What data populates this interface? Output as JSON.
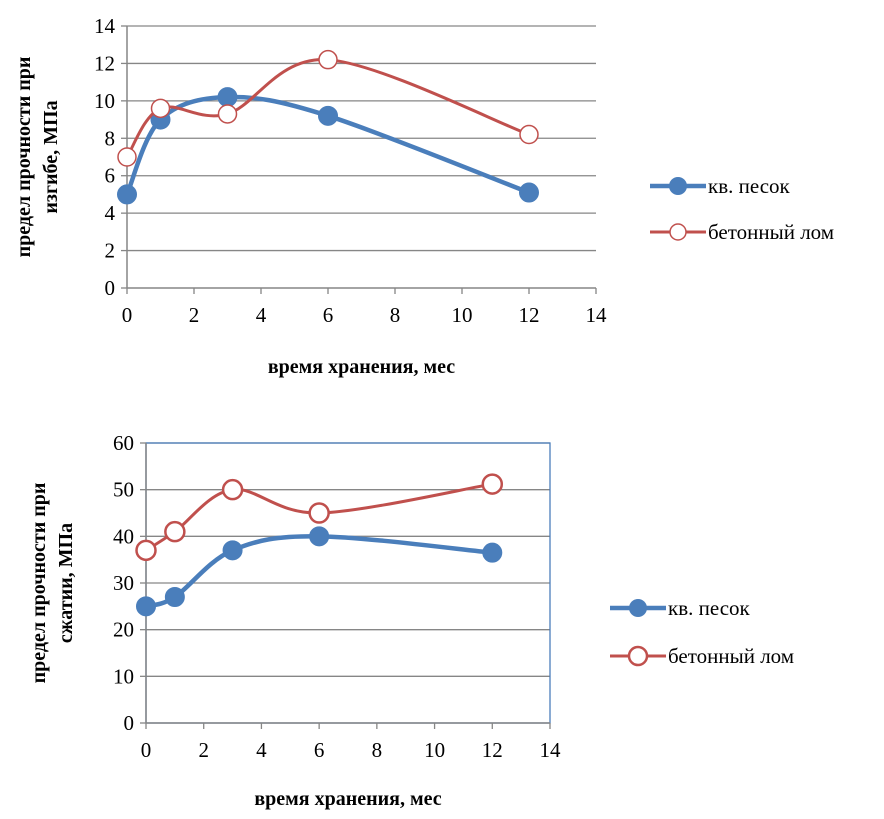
{
  "chart_data": [
    {
      "type": "line",
      "title": "",
      "xlabel": "время хранения, мес",
      "ylabel": "предел прочности при изгибе, МПа",
      "xlim": [
        0,
        14
      ],
      "ylim": [
        0,
        14
      ],
      "x_ticks": [
        0,
        2,
        4,
        6,
        8,
        10,
        12,
        14
      ],
      "y_ticks": [
        0,
        2,
        4,
        6,
        8,
        10,
        12,
        14
      ],
      "grid": "horizontal",
      "legend_position": "right",
      "series": [
        {
          "name": "кв. песок",
          "color": "#4a7ebb",
          "marker": "filled-circle",
          "x": [
            0,
            1,
            3,
            6,
            12
          ],
          "y": [
            5.0,
            9.0,
            10.2,
            9.2,
            5.1
          ]
        },
        {
          "name": "бетонный лом",
          "color": "#c0504d",
          "marker": "open-circle",
          "x": [
            0,
            1,
            3,
            6,
            12
          ],
          "y": [
            7.0,
            9.6,
            9.3,
            12.2,
            8.2
          ]
        }
      ]
    },
    {
      "type": "line",
      "title": "",
      "xlabel": "время хранения, мес",
      "ylabel": "предел прочности при сжатии, МПа",
      "xlim": [
        0,
        14
      ],
      "ylim": [
        0,
        60
      ],
      "x_ticks": [
        0,
        2,
        4,
        6,
        8,
        10,
        12,
        14
      ],
      "y_ticks": [
        0,
        10,
        20,
        30,
        40,
        50,
        60
      ],
      "grid": "horizontal",
      "legend_position": "right",
      "series": [
        {
          "name": "кв. песок",
          "color": "#4a7ebb",
          "marker": "filled-circle",
          "x": [
            0,
            1,
            3,
            6,
            12
          ],
          "y": [
            25,
            27,
            37,
            40,
            36.5
          ]
        },
        {
          "name": "бетонный лом",
          "color": "#c0504d",
          "marker": "open-circle",
          "x": [
            0,
            1,
            3,
            6,
            12
          ],
          "y": [
            37,
            41,
            50,
            45,
            51.2
          ]
        }
      ]
    }
  ]
}
